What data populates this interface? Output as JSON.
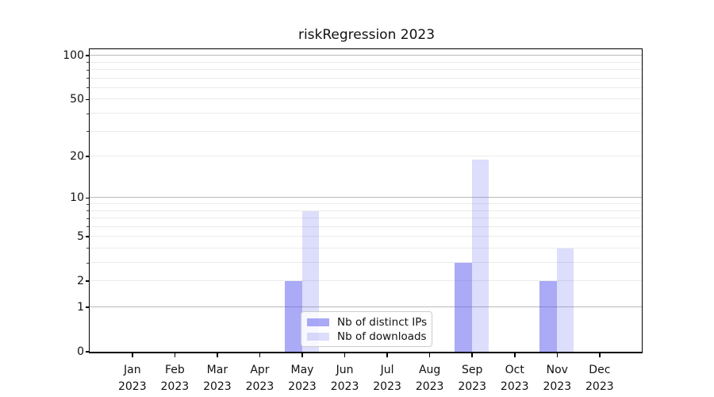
{
  "title": "riskRegression 2023",
  "chart_data": {
    "type": "bar",
    "title": "riskRegression 2023",
    "categories": [
      "Jan",
      "Feb",
      "Mar",
      "Apr",
      "May",
      "Jun",
      "Jul",
      "Aug",
      "Sep",
      "Oct",
      "Nov",
      "Dec"
    ],
    "category_year": "2023",
    "series": [
      {
        "name": "Nb of distinct IPs",
        "color": "rgba(85,85,240,0.5)",
        "values": [
          0,
          0,
          0,
          0,
          2,
          0,
          0,
          0,
          3,
          0,
          2,
          0
        ]
      },
      {
        "name": "Nb of downloads",
        "color": "rgba(85,85,240,0.2)",
        "values": [
          0,
          0,
          0,
          0,
          8,
          0,
          0,
          0,
          19,
          0,
          4,
          0
        ]
      }
    ],
    "y_axis": {
      "scale": "log10(1+x)",
      "tick_labels": [
        0,
        1,
        2,
        5,
        10,
        20,
        50,
        100
      ],
      "major_gridlines": [
        1,
        10,
        100
      ],
      "minor_gridlines": [
        2,
        3,
        4,
        5,
        6,
        7,
        8,
        9,
        20,
        30,
        40,
        50,
        60,
        70,
        80,
        90
      ],
      "ymax_approx": 112
    },
    "x_axis": {
      "tick_count": 12
    },
    "legend": {
      "entries": [
        "Nb of distinct IPs",
        "Nb of downloads"
      ],
      "position": "lower-center-left"
    },
    "grid": true,
    "colors": {
      "ips_bar": "rgba(85,85,240,0.5)",
      "downloads_bar": "rgba(85,85,240,0.2)",
      "major_grid": "#b9b9b9",
      "minor_grid": "#ebebeb",
      "spine": "#000000"
    }
  }
}
